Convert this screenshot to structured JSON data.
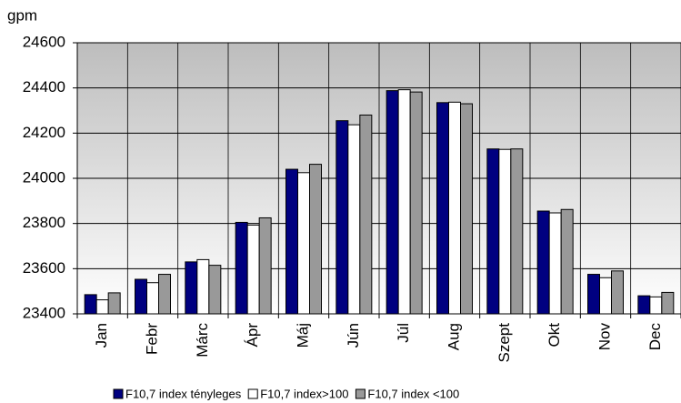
{
  "chart_data": {
    "type": "bar",
    "y_label": "gpm",
    "categories": [
      "Jan",
      "Febr",
      "Márc",
      "Ápr",
      "Máj",
      "Jún",
      "Júl",
      "Aug",
      "Szept",
      "Okt",
      "Nov",
      "Dec"
    ],
    "series": [
      {
        "name": "F10,7 index tényleges",
        "color": "#000080",
        "values": [
          23485,
          23553,
          23630,
          23805,
          24040,
          24255,
          24388,
          24335,
          24130,
          23855,
          23575,
          23480
        ]
      },
      {
        "name": "F10,7 index>100",
        "color": "#ffffff",
        "values": [
          23462,
          23538,
          23640,
          23793,
          24025,
          24237,
          24392,
          24337,
          24128,
          23847,
          23560,
          23475
        ]
      },
      {
        "name": "F10,7 index <100",
        "color": "#999999",
        "values": [
          23493,
          23575,
          23615,
          23825,
          24062,
          24280,
          24382,
          24330,
          24130,
          23862,
          23590,
          23495
        ]
      }
    ],
    "ylim": [
      23400,
      24600
    ],
    "yticks": [
      23400,
      23600,
      23800,
      24000,
      24200,
      24400,
      24600
    ],
    "grid": true
  }
}
